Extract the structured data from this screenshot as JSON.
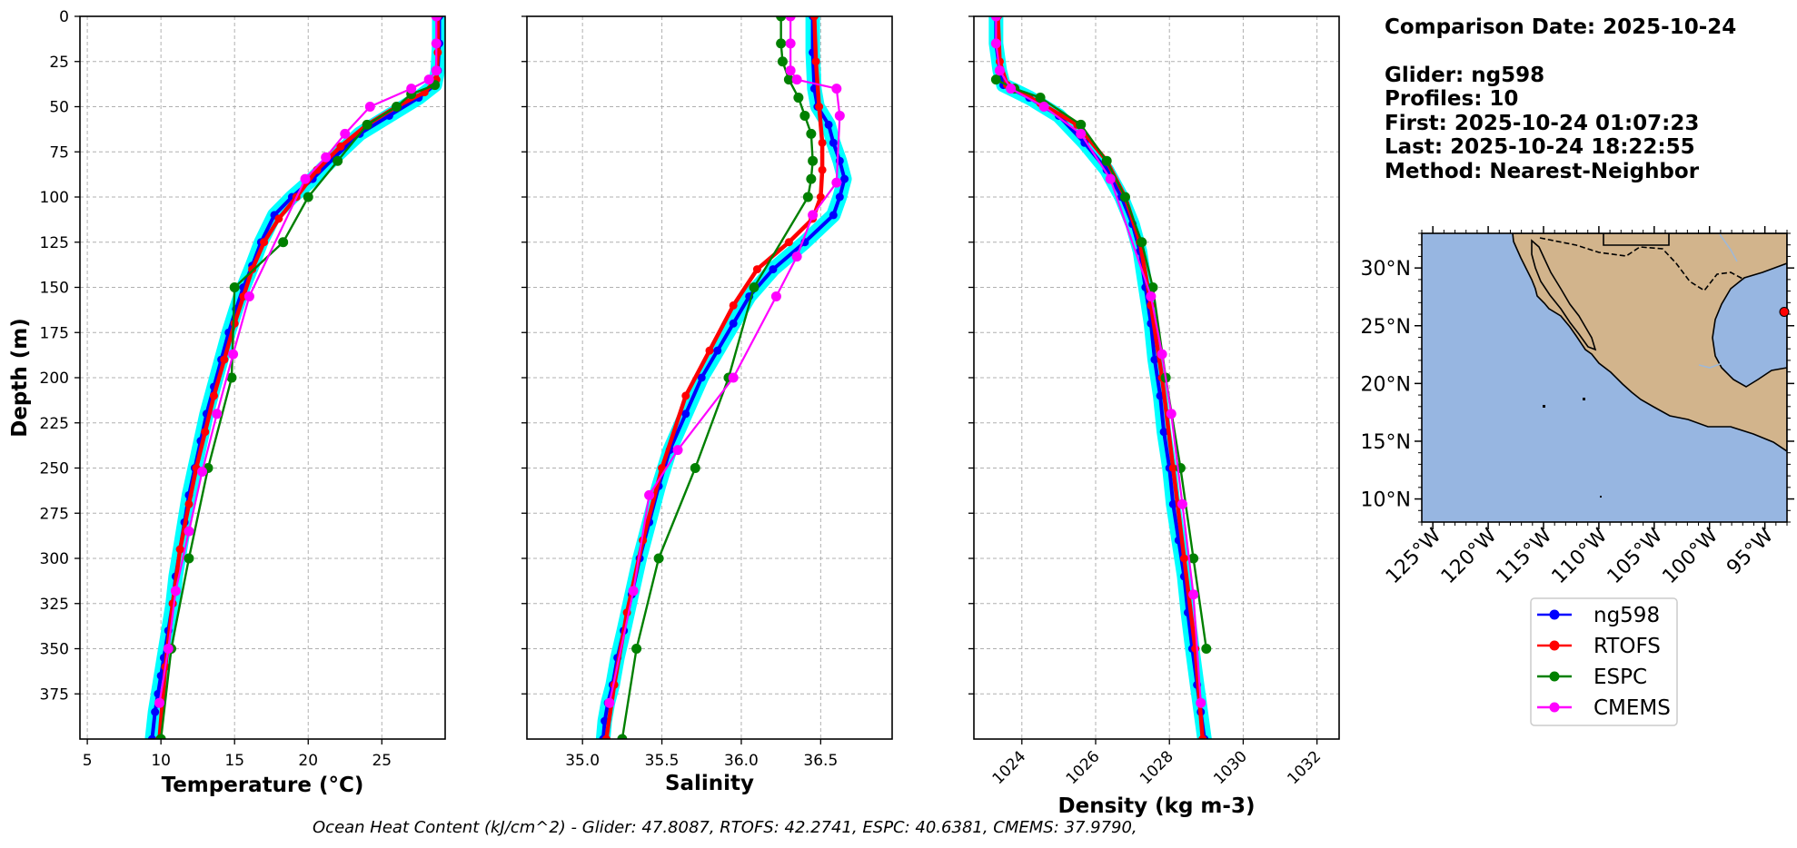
{
  "colors": {
    "glider": "#0000ff",
    "glider_band": "#00ffff",
    "rtofs": "#ff0000",
    "espc": "#008000",
    "cmems": "#ff00ff",
    "ocean": "#97b6e1",
    "land": "#d2b48c",
    "grid": "#b0b0b0"
  },
  "info": {
    "comparison_date": "Comparison Date: 2025-10-24",
    "glider": "Glider: ng598",
    "profiles": "Profiles: 10",
    "first": "First: 2025-10-24 01:07:23",
    "last": "Last: 2025-10-24 18:22:55",
    "method": "Method: Nearest-Neighbor"
  },
  "footer": "Ocean Heat Content (kJ/cm^2) - Glider: 47.8087,  RTOFS: 42.2741,  ESPC: 40.6381,  CMEMS: 37.9790,",
  "legend": {
    "placement": "below map",
    "items": [
      {
        "name": "ng598",
        "icon": "line-dot-marker"
      },
      {
        "name": "RTOFS",
        "icon": "line-dot-marker"
      },
      {
        "name": "ESPC",
        "icon": "line-dot-marker"
      },
      {
        "name": "CMEMS",
        "icon": "line-dot-marker"
      }
    ]
  },
  "map": {
    "lat_labels": [
      "30°N",
      "25°N",
      "20°N",
      "15°N",
      "10°N"
    ],
    "lon_labels": [
      "125°W",
      "120°W",
      "115°W",
      "110°W",
      "105°W",
      "100°W",
      "95°W"
    ],
    "extent": {
      "lon": [
        -126,
        -93
      ],
      "lat": [
        8,
        33
      ]
    },
    "glider_position": {
      "lon": -93,
      "lat": 26.2
    }
  },
  "chart_data": [
    {
      "type": "line",
      "xlabel": "Temperature (°C)",
      "ylabel": "Depth (m)",
      "xlim": [
        4.5,
        29.3
      ],
      "ylim": [
        400,
        0
      ],
      "x_ticks": [
        "5",
        "10",
        "15",
        "20",
        "25"
      ],
      "y_ticks": [
        "0",
        "25",
        "50",
        "75",
        "100",
        "125",
        "150",
        "175",
        "200",
        "225",
        "250",
        "275",
        "300",
        "325",
        "350",
        "375"
      ],
      "grid": true,
      "series": [
        {
          "name": "ng598",
          "key": "glider",
          "x": [
            28.9,
            28.9,
            28.8,
            28.6,
            27.5,
            25.5,
            23.5,
            21.8,
            20.3,
            18.9,
            17.7,
            16.8,
            16.2,
            15.6,
            15.1,
            14.6,
            14.1,
            13.6,
            13.1,
            12.7,
            12.3,
            11.9,
            11.6,
            11.3,
            11.0,
            10.8,
            10.5,
            10.2,
            10.0,
            9.8,
            9.6,
            9.4
          ],
          "y": [
            0,
            15,
            30,
            38,
            45,
            55,
            65,
            78,
            90,
            100,
            110,
            125,
            138,
            150,
            162,
            175,
            190,
            205,
            220,
            235,
            250,
            265,
            280,
            295,
            310,
            325,
            340,
            355,
            365,
            375,
            385,
            400
          ]
        },
        {
          "name": "RTOFS",
          "key": "rtofs",
          "x": [
            28.8,
            28.8,
            28.7,
            27.9,
            26.0,
            24.0,
            22.2,
            20.6,
            19.2,
            18.0,
            17.0,
            16.2,
            15.6,
            15.0,
            14.3,
            13.6,
            13.0,
            12.4,
            11.9,
            11.3,
            10.8,
            10.3,
            9.9
          ],
          "y": [
            0,
            20,
            35,
            42,
            50,
            60,
            72,
            85,
            100,
            112,
            125,
            140,
            155,
            170,
            190,
            210,
            230,
            250,
            270,
            295,
            325,
            360,
            400
          ]
        },
        {
          "name": "ESPC",
          "key": "espc",
          "x": [
            28.6,
            27.0,
            26.0,
            24.0,
            22.0,
            20.0,
            18.3,
            15.0,
            14.8,
            13.2,
            11.9,
            10.7,
            10.0
          ],
          "y": [
            38,
            43,
            50,
            60,
            80,
            100,
            125,
            150,
            200,
            250,
            300,
            350,
            400
          ]
        },
        {
          "name": "CMEMS",
          "key": "cmems",
          "x": [
            28.7,
            28.7,
            28.7,
            28.2,
            27.0,
            24.2,
            22.5,
            21.2,
            19.8,
            16.0,
            14.9,
            13.8,
            12.8,
            11.9,
            11.0,
            10.5,
            9.9
          ],
          "y": [
            0,
            15,
            30,
            35,
            40,
            50,
            65,
            78,
            90,
            155,
            187,
            220,
            252,
            285,
            318,
            350,
            380
          ]
        }
      ]
    },
    {
      "type": "line",
      "xlabel": "Salinity",
      "ylim": [
        400,
        0
      ],
      "xlim": [
        34.65,
        36.95
      ],
      "x_ticks": [
        "35.0",
        "35.5",
        "36.0",
        "36.5"
      ],
      "grid": true,
      "series": [
        {
          "name": "ng598",
          "key": "glider",
          "x": [
            36.45,
            36.45,
            36.46,
            36.48,
            36.55,
            36.58,
            36.62,
            36.65,
            36.62,
            36.58,
            36.4,
            36.2,
            36.05,
            35.95,
            35.85,
            35.75,
            35.65,
            35.55,
            35.48,
            35.42,
            35.36,
            35.31,
            35.26,
            35.22,
            35.19,
            35.16,
            35.14,
            35.13
          ],
          "y": [
            0,
            20,
            40,
            50,
            60,
            70,
            80,
            90,
            100,
            110,
            125,
            140,
            155,
            170,
            185,
            200,
            220,
            240,
            260,
            280,
            300,
            320,
            340,
            355,
            370,
            380,
            390,
            400
          ]
        },
        {
          "name": "RTOFS",
          "key": "rtofs",
          "x": [
            36.46,
            36.47,
            36.49,
            36.51,
            36.51,
            36.5,
            36.45,
            36.3,
            36.1,
            35.95,
            35.8,
            35.65,
            35.5,
            35.38,
            35.28,
            35.2,
            35.15
          ],
          "y": [
            0,
            25,
            50,
            70,
            85,
            100,
            112,
            125,
            140,
            160,
            185,
            210,
            250,
            290,
            330,
            370,
            400
          ]
        },
        {
          "name": "ESPC",
          "key": "espc",
          "x": [
            36.25,
            36.25,
            36.26,
            36.3,
            36.36,
            36.4,
            36.44,
            36.45,
            36.44,
            36.42,
            36.08,
            35.92,
            35.71,
            35.48,
            35.34,
            35.25
          ],
          "y": [
            0,
            15,
            25,
            35,
            45,
            55,
            65,
            80,
            90,
            100,
            150,
            200,
            250,
            300,
            350,
            400
          ]
        },
        {
          "name": "CMEMS",
          "key": "cmems",
          "x": [
            36.31,
            36.31,
            36.31,
            36.35,
            36.6,
            36.62,
            36.6,
            36.45,
            36.35,
            36.22,
            35.95,
            35.6,
            35.42,
            35.32,
            35.17
          ],
          "y": [
            0,
            15,
            30,
            35,
            40,
            55,
            92,
            110,
            133,
            155,
            200,
            240,
            265,
            318,
            380
          ]
        }
      ]
    },
    {
      "type": "line",
      "xlabel": "Density (kg m-3)",
      "ylim": [
        400,
        0
      ],
      "xlim": [
        1022.7,
        1032.6
      ],
      "x_ticks": [
        "1024",
        "1026",
        "1028",
        "1030",
        "1032"
      ],
      "grid": true,
      "series": [
        {
          "name": "ng598",
          "key": "glider",
          "x": [
            1023.3,
            1023.3,
            1023.4,
            1023.5,
            1024.2,
            1025.0,
            1025.7,
            1026.3,
            1026.7,
            1027.0,
            1027.2,
            1027.35,
            1027.5,
            1027.6,
            1027.75,
            1027.85,
            1028.0,
            1028.1,
            1028.25,
            1028.4,
            1028.5,
            1028.62,
            1028.75,
            1028.85,
            1028.95
          ],
          "y": [
            0,
            15,
            30,
            38,
            45,
            55,
            70,
            85,
            100,
            115,
            130,
            150,
            170,
            190,
            210,
            230,
            250,
            270,
            290,
            310,
            330,
            350,
            370,
            385,
            400
          ]
        },
        {
          "name": "RTOFS",
          "key": "rtofs",
          "x": [
            1023.35,
            1023.4,
            1023.6,
            1024.5,
            1025.5,
            1026.3,
            1026.8,
            1027.2,
            1027.5,
            1027.8,
            1028.1,
            1028.4,
            1028.7,
            1028.9
          ],
          "y": [
            0,
            25,
            38,
            48,
            60,
            80,
            100,
            125,
            160,
            200,
            250,
            300,
            350,
            400
          ]
        },
        {
          "name": "ESPC",
          "key": "espc",
          "x": [
            1023.3,
            1023.8,
            1024.5,
            1025.6,
            1026.3,
            1026.8,
            1027.25,
            1027.55,
            1027.9,
            1028.3,
            1028.65,
            1029.0
          ],
          "y": [
            35,
            40,
            45,
            60,
            80,
            100,
            125,
            150,
            200,
            250,
            300,
            350
          ]
        },
        {
          "name": "CMEMS",
          "key": "cmems",
          "x": [
            1023.3,
            1023.3,
            1023.4,
            1023.7,
            1024.6,
            1025.6,
            1026.4,
            1027.5,
            1027.8,
            1028.05,
            1028.35,
            1028.65,
            1028.85
          ],
          "y": [
            0,
            15,
            30,
            40,
            50,
            65,
            90,
            155,
            187,
            220,
            270,
            320,
            380
          ]
        }
      ]
    }
  ]
}
